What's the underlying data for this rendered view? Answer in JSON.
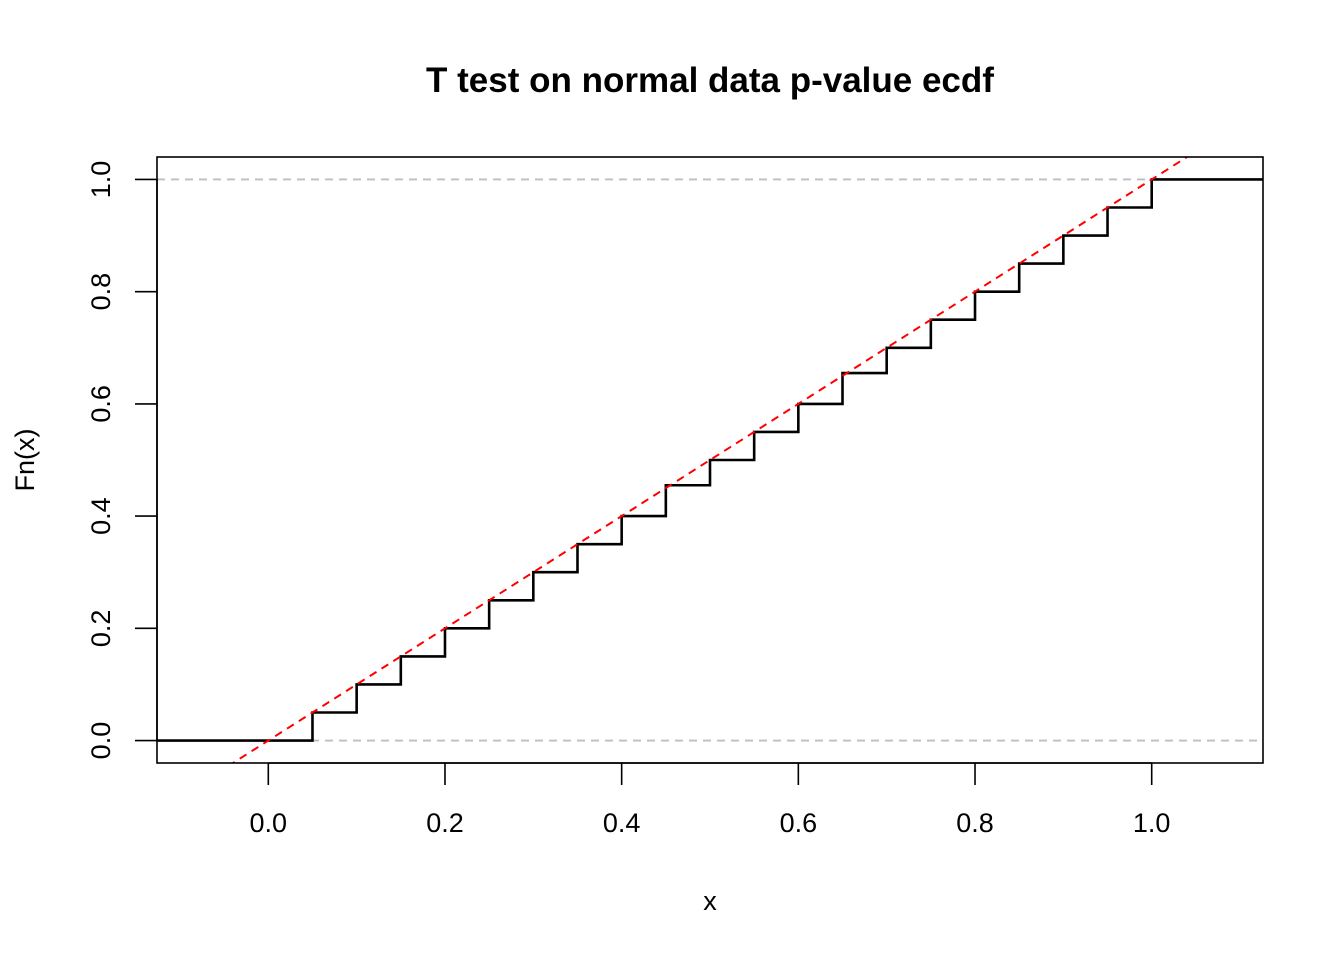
{
  "chart_data": {
    "type": "line",
    "title": "T test on normal data p-value ecdf",
    "xlabel": "x",
    "ylabel": "Fn(x)",
    "xlim": [
      -0.126,
      1.126
    ],
    "ylim": [
      -0.04,
      1.04
    ],
    "x_ticks": [
      "0.0",
      "0.2",
      "0.4",
      "0.6",
      "0.8",
      "1.0"
    ],
    "y_ticks": [
      "0.0",
      "0.2",
      "0.4",
      "0.6",
      "0.8",
      "1.0"
    ],
    "series": [
      {
        "kind": "ecdf-step",
        "color": "#000000",
        "x": [
          -0.2,
          0.0,
          0.05,
          0.1,
          0.15,
          0.2,
          0.25,
          0.3,
          0.35,
          0.4,
          0.45,
          0.5,
          0.55,
          0.6,
          0.65,
          0.7,
          0.75,
          0.8,
          0.85,
          0.9,
          0.95,
          1.0,
          1.2
        ],
        "y": [
          0.0,
          0.0,
          0.05,
          0.1,
          0.15,
          0.2,
          0.25,
          0.3,
          0.35,
          0.4,
          0.455,
          0.5,
          0.55,
          0.6,
          0.655,
          0.7,
          0.75,
          0.8,
          0.85,
          0.9,
          0.95,
          1.0,
          1.0
        ]
      },
      {
        "kind": "reference-line",
        "line": "y = x",
        "color": "#ff0000",
        "style": "dashed"
      }
    ],
    "hlines": [
      {
        "y": 0.0,
        "color": "#bebebe",
        "style": "dashed"
      },
      {
        "y": 1.0,
        "color": "#bebebe",
        "style": "dashed"
      }
    ],
    "grid": false,
    "legend": "none"
  }
}
